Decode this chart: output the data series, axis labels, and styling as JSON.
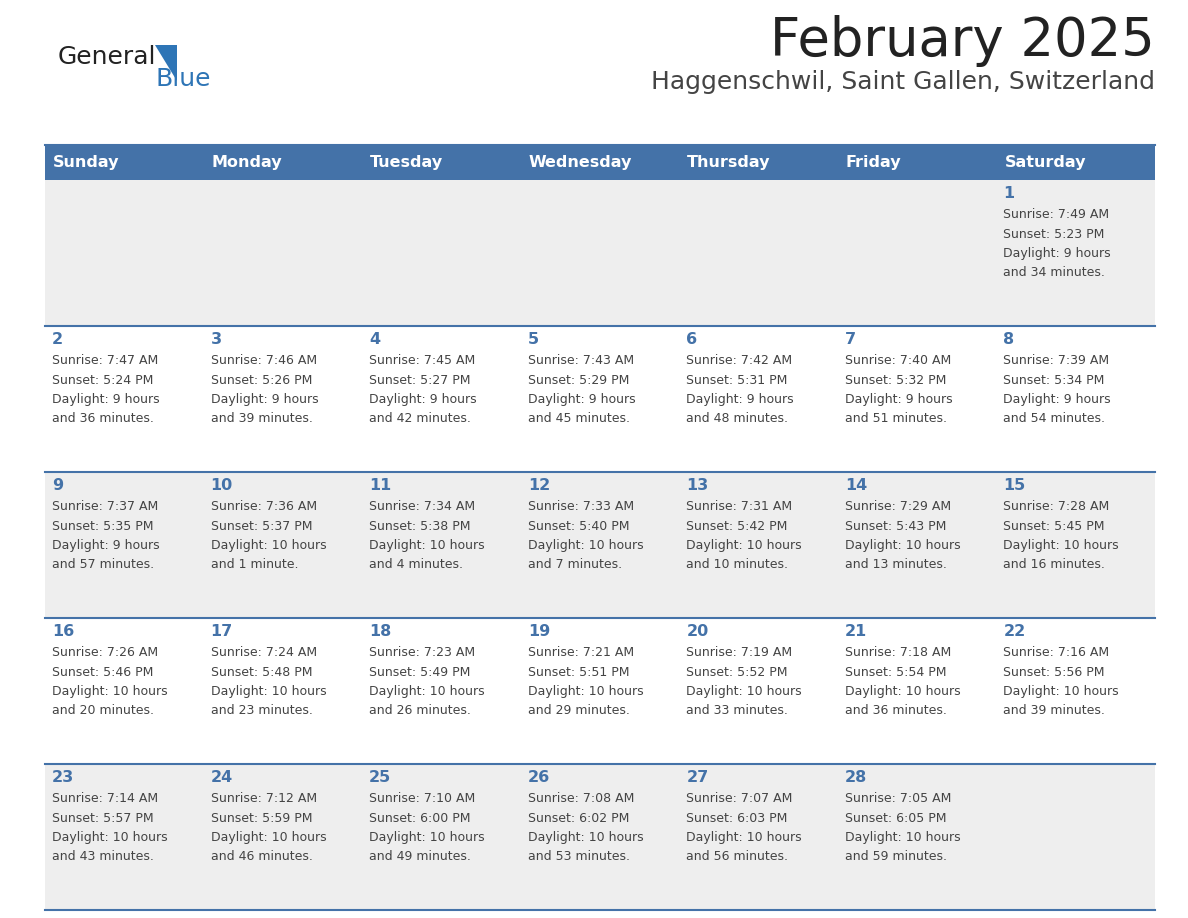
{
  "title": "February 2025",
  "subtitle": "Haggenschwil, Saint Gallen, Switzerland",
  "header_bg": "#4472A8",
  "header_text_color": "#FFFFFF",
  "day_names": [
    "Sunday",
    "Monday",
    "Tuesday",
    "Wednesday",
    "Thursday",
    "Friday",
    "Saturday"
  ],
  "row_bg_even": "#EEEEEE",
  "row_bg_odd": "#FFFFFF",
  "separator_color": "#4472A8",
  "number_color": "#4472A8",
  "text_color": "#444444",
  "logo_general_color": "#222222",
  "logo_blue_color": "#2E75B6",
  "calendar": [
    [
      null,
      null,
      null,
      null,
      null,
      null,
      {
        "day": 1,
        "sunrise": "7:49 AM",
        "sunset": "5:23 PM",
        "daylight": "9 hours and 34 minutes."
      }
    ],
    [
      {
        "day": 2,
        "sunrise": "7:47 AM",
        "sunset": "5:24 PM",
        "daylight": "9 hours and 36 minutes."
      },
      {
        "day": 3,
        "sunrise": "7:46 AM",
        "sunset": "5:26 PM",
        "daylight": "9 hours and 39 minutes."
      },
      {
        "day": 4,
        "sunrise": "7:45 AM",
        "sunset": "5:27 PM",
        "daylight": "9 hours and 42 minutes."
      },
      {
        "day": 5,
        "sunrise": "7:43 AM",
        "sunset": "5:29 PM",
        "daylight": "9 hours and 45 minutes."
      },
      {
        "day": 6,
        "sunrise": "7:42 AM",
        "sunset": "5:31 PM",
        "daylight": "9 hours and 48 minutes."
      },
      {
        "day": 7,
        "sunrise": "7:40 AM",
        "sunset": "5:32 PM",
        "daylight": "9 hours and 51 minutes."
      },
      {
        "day": 8,
        "sunrise": "7:39 AM",
        "sunset": "5:34 PM",
        "daylight": "9 hours and 54 minutes."
      }
    ],
    [
      {
        "day": 9,
        "sunrise": "7:37 AM",
        "sunset": "5:35 PM",
        "daylight": "9 hours and 57 minutes."
      },
      {
        "day": 10,
        "sunrise": "7:36 AM",
        "sunset": "5:37 PM",
        "daylight": "10 hours and 1 minute."
      },
      {
        "day": 11,
        "sunrise": "7:34 AM",
        "sunset": "5:38 PM",
        "daylight": "10 hours and 4 minutes."
      },
      {
        "day": 12,
        "sunrise": "7:33 AM",
        "sunset": "5:40 PM",
        "daylight": "10 hours and 7 minutes."
      },
      {
        "day": 13,
        "sunrise": "7:31 AM",
        "sunset": "5:42 PM",
        "daylight": "10 hours and 10 minutes."
      },
      {
        "day": 14,
        "sunrise": "7:29 AM",
        "sunset": "5:43 PM",
        "daylight": "10 hours and 13 minutes."
      },
      {
        "day": 15,
        "sunrise": "7:28 AM",
        "sunset": "5:45 PM",
        "daylight": "10 hours and 16 minutes."
      }
    ],
    [
      {
        "day": 16,
        "sunrise": "7:26 AM",
        "sunset": "5:46 PM",
        "daylight": "10 hours and 20 minutes."
      },
      {
        "day": 17,
        "sunrise": "7:24 AM",
        "sunset": "5:48 PM",
        "daylight": "10 hours and 23 minutes."
      },
      {
        "day": 18,
        "sunrise": "7:23 AM",
        "sunset": "5:49 PM",
        "daylight": "10 hours and 26 minutes."
      },
      {
        "day": 19,
        "sunrise": "7:21 AM",
        "sunset": "5:51 PM",
        "daylight": "10 hours and 29 minutes."
      },
      {
        "day": 20,
        "sunrise": "7:19 AM",
        "sunset": "5:52 PM",
        "daylight": "10 hours and 33 minutes."
      },
      {
        "day": 21,
        "sunrise": "7:18 AM",
        "sunset": "5:54 PM",
        "daylight": "10 hours and 36 minutes."
      },
      {
        "day": 22,
        "sunrise": "7:16 AM",
        "sunset": "5:56 PM",
        "daylight": "10 hours and 39 minutes."
      }
    ],
    [
      {
        "day": 23,
        "sunrise": "7:14 AM",
        "sunset": "5:57 PM",
        "daylight": "10 hours and 43 minutes."
      },
      {
        "day": 24,
        "sunrise": "7:12 AM",
        "sunset": "5:59 PM",
        "daylight": "10 hours and 46 minutes."
      },
      {
        "day": 25,
        "sunrise": "7:10 AM",
        "sunset": "6:00 PM",
        "daylight": "10 hours and 49 minutes."
      },
      {
        "day": 26,
        "sunrise": "7:08 AM",
        "sunset": "6:02 PM",
        "daylight": "10 hours and 53 minutes."
      },
      {
        "day": 27,
        "sunrise": "7:07 AM",
        "sunset": "6:03 PM",
        "daylight": "10 hours and 56 minutes."
      },
      {
        "day": 28,
        "sunrise": "7:05 AM",
        "sunset": "6:05 PM",
        "daylight": "10 hours and 59 minutes."
      },
      null
    ]
  ]
}
